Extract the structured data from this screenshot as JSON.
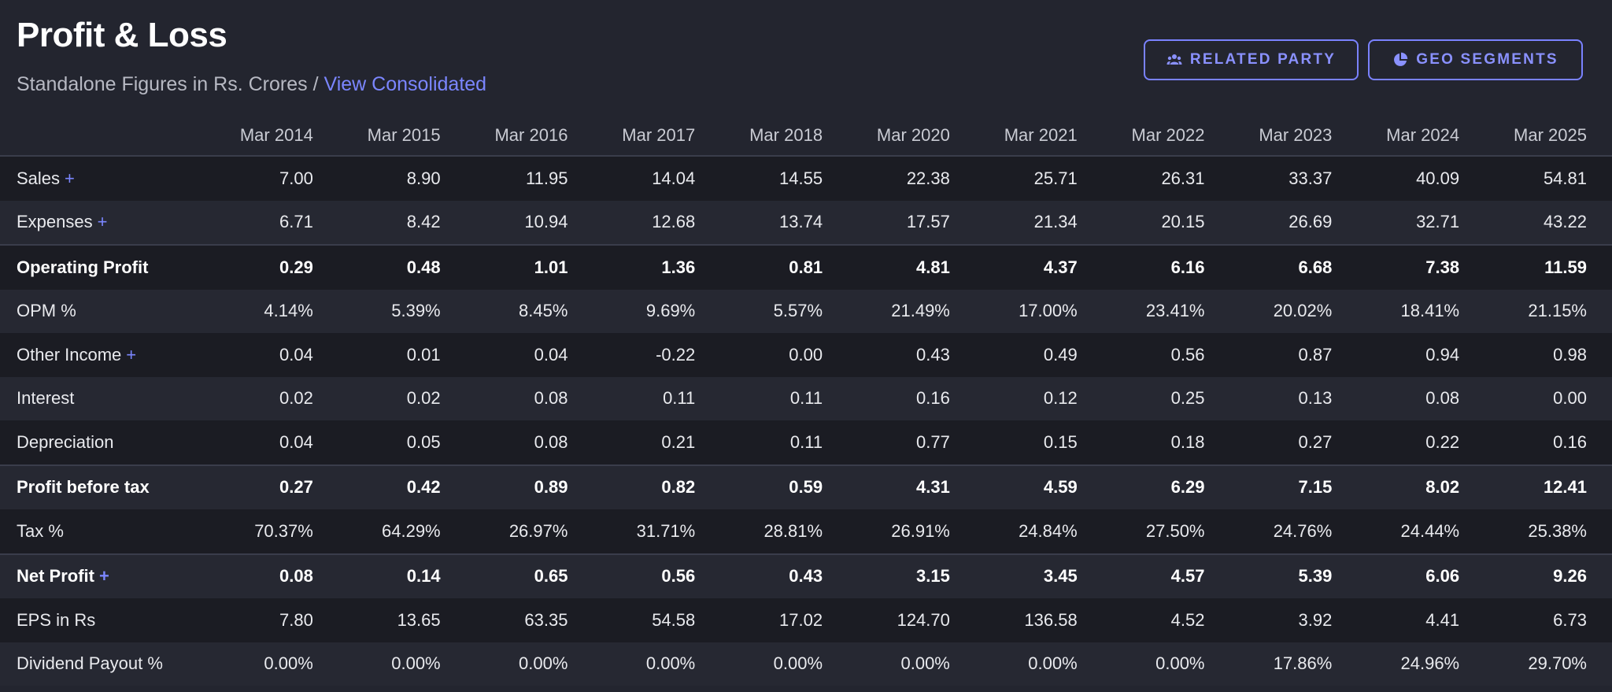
{
  "header": {
    "title": "Profit & Loss",
    "subtitle_prefix": "Standalone Figures in Rs. Crores / ",
    "view_link": "View Consolidated",
    "related_party_label": "RELATED PARTY",
    "geo_segments_label": "GEO SEGMENTS"
  },
  "colors": {
    "background": "#23252f",
    "row_dark": "#1b1c23",
    "row_light": "#262832",
    "accent": "#7b86ff"
  },
  "icons": {
    "related_party": "users-icon",
    "geo_segments": "pie-chart-icon",
    "expand": "plus-icon"
  },
  "table": {
    "columns": [
      "Mar 2014",
      "Mar 2015",
      "Mar 2016",
      "Mar 2017",
      "Mar 2018",
      "Mar 2020",
      "Mar 2021",
      "Mar 2022",
      "Mar 2023",
      "Mar 2024",
      "Mar 2025"
    ],
    "expand_symbol": "+",
    "rows": [
      {
        "label": "Sales",
        "expandable": true,
        "bold": false,
        "separator": false,
        "values": [
          "7.00",
          "8.90",
          "11.95",
          "14.04",
          "14.55",
          "22.38",
          "25.71",
          "26.31",
          "33.37",
          "40.09",
          "54.81"
        ]
      },
      {
        "label": "Expenses",
        "expandable": true,
        "bold": false,
        "separator": false,
        "values": [
          "6.71",
          "8.42",
          "10.94",
          "12.68",
          "13.74",
          "17.57",
          "21.34",
          "20.15",
          "26.69",
          "32.71",
          "43.22"
        ]
      },
      {
        "label": "Operating Profit",
        "expandable": false,
        "bold": true,
        "separator": true,
        "values": [
          "0.29",
          "0.48",
          "1.01",
          "1.36",
          "0.81",
          "4.81",
          "4.37",
          "6.16",
          "6.68",
          "7.38",
          "11.59"
        ]
      },
      {
        "label": "OPM %",
        "expandable": false,
        "bold": false,
        "separator": false,
        "values": [
          "4.14%",
          "5.39%",
          "8.45%",
          "9.69%",
          "5.57%",
          "21.49%",
          "17.00%",
          "23.41%",
          "20.02%",
          "18.41%",
          "21.15%"
        ]
      },
      {
        "label": "Other Income",
        "expandable": true,
        "bold": false,
        "separator": false,
        "values": [
          "0.04",
          "0.01",
          "0.04",
          "-0.22",
          "0.00",
          "0.43",
          "0.49",
          "0.56",
          "0.87",
          "0.94",
          "0.98"
        ]
      },
      {
        "label": "Interest",
        "expandable": false,
        "bold": false,
        "separator": false,
        "values": [
          "0.02",
          "0.02",
          "0.08",
          "0.11",
          "0.11",
          "0.16",
          "0.12",
          "0.25",
          "0.13",
          "0.08",
          "0.00"
        ]
      },
      {
        "label": "Depreciation",
        "expandable": false,
        "bold": false,
        "separator": false,
        "values": [
          "0.04",
          "0.05",
          "0.08",
          "0.21",
          "0.11",
          "0.77",
          "0.15",
          "0.18",
          "0.27",
          "0.22",
          "0.16"
        ]
      },
      {
        "label": "Profit before tax",
        "expandable": false,
        "bold": true,
        "separator": true,
        "values": [
          "0.27",
          "0.42",
          "0.89",
          "0.82",
          "0.59",
          "4.31",
          "4.59",
          "6.29",
          "7.15",
          "8.02",
          "12.41"
        ]
      },
      {
        "label": "Tax %",
        "expandable": false,
        "bold": false,
        "separator": false,
        "values": [
          "70.37%",
          "64.29%",
          "26.97%",
          "31.71%",
          "28.81%",
          "26.91%",
          "24.84%",
          "27.50%",
          "24.76%",
          "24.44%",
          "25.38%"
        ]
      },
      {
        "label": "Net Profit",
        "expandable": true,
        "bold": true,
        "separator": true,
        "values": [
          "0.08",
          "0.14",
          "0.65",
          "0.56",
          "0.43",
          "3.15",
          "3.45",
          "4.57",
          "5.39",
          "6.06",
          "9.26"
        ]
      },
      {
        "label": "EPS in Rs",
        "expandable": false,
        "bold": false,
        "separator": false,
        "values": [
          "7.80",
          "13.65",
          "63.35",
          "54.58",
          "17.02",
          "124.70",
          "136.58",
          "4.52",
          "3.92",
          "4.41",
          "6.73"
        ]
      },
      {
        "label": "Dividend Payout %",
        "expandable": false,
        "bold": false,
        "separator": false,
        "values": [
          "0.00%",
          "0.00%",
          "0.00%",
          "0.00%",
          "0.00%",
          "0.00%",
          "0.00%",
          "0.00%",
          "17.86%",
          "24.96%",
          "29.70%"
        ]
      }
    ]
  }
}
